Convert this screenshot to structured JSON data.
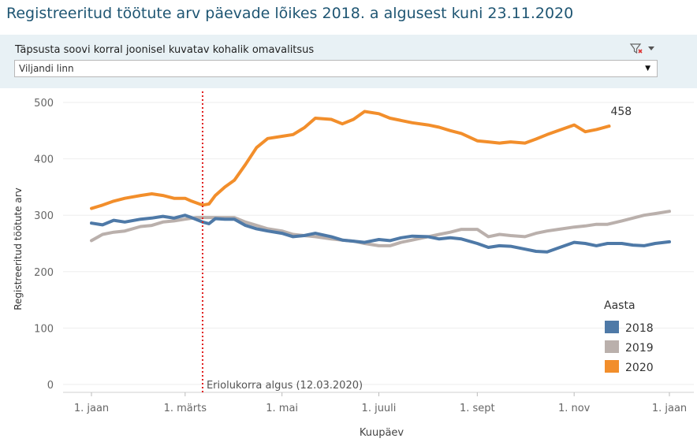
{
  "title": "Registreeritud töötute arv päevade lõikes 2018. a algusest kuni 23.11.2020",
  "filter": {
    "label": "Täpsusta soovi korral  joonisel kuvatav kohalik omavalitsus",
    "selected": "Viljandi linn",
    "icon": "filter-clear-icon"
  },
  "chart_data": {
    "type": "line",
    "xlabel": "Kuupäev",
    "ylabel": "Registreeritud töötute arv",
    "ylim": [
      0,
      500
    ],
    "yticks": [
      0,
      100,
      200,
      300,
      400,
      500
    ],
    "xlim": [
      "01-01",
      "12-31"
    ],
    "xticks": [
      {
        "date": "01-01",
        "label": "1. jaan"
      },
      {
        "date": "03-01",
        "label": "1. märts"
      },
      {
        "date": "05-01",
        "label": "1. mai"
      },
      {
        "date": "07-01",
        "label": "1. juuli"
      },
      {
        "date": "09-01",
        "label": "1. sept"
      },
      {
        "date": "11-01",
        "label": "1. nov"
      },
      {
        "date": "12-31",
        "label": "1. jaan"
      }
    ],
    "grid": true,
    "legend": {
      "title": "Aasta",
      "placement": "right",
      "entries": [
        {
          "label": "2018",
          "color": "#4e79a7"
        },
        {
          "label": "2019",
          "color": "#bab0ac"
        },
        {
          "label": "2020",
          "color": "#f28e2b"
        }
      ]
    },
    "reference_line": {
      "date": "03-12",
      "label": "Eriolukorra algus (12.03.2020)",
      "color": "#e01e1e"
    },
    "end_label": {
      "series": "2020",
      "date": "11-23",
      "value": 458,
      "text": "458"
    },
    "series": [
      {
        "name": "2018",
        "color": "#4e79a7",
        "points": [
          [
            "01-01",
            286
          ],
          [
            "01-08",
            283
          ],
          [
            "01-15",
            291
          ],
          [
            "01-22",
            288
          ],
          [
            "02-01",
            293
          ],
          [
            "02-08",
            295
          ],
          [
            "02-15",
            298
          ],
          [
            "02-22",
            295
          ],
          [
            "03-01",
            300
          ],
          [
            "03-05",
            296
          ],
          [
            "03-12",
            288
          ],
          [
            "03-16",
            285
          ],
          [
            "03-20",
            294
          ],
          [
            "03-26",
            293
          ],
          [
            "04-01",
            293
          ],
          [
            "04-08",
            282
          ],
          [
            "04-15",
            276
          ],
          [
            "04-22",
            272
          ],
          [
            "05-01",
            268
          ],
          [
            "05-08",
            262
          ],
          [
            "05-15",
            264
          ],
          [
            "05-22",
            268
          ],
          [
            "06-01",
            262
          ],
          [
            "06-08",
            256
          ],
          [
            "06-15",
            254
          ],
          [
            "06-22",
            252
          ],
          [
            "07-01",
            257
          ],
          [
            "07-08",
            255
          ],
          [
            "07-15",
            260
          ],
          [
            "07-22",
            263
          ],
          [
            "08-01",
            262
          ],
          [
            "08-08",
            258
          ],
          [
            "08-15",
            260
          ],
          [
            "08-22",
            258
          ],
          [
            "09-01",
            250
          ],
          [
            "09-08",
            243
          ],
          [
            "09-15",
            246
          ],
          [
            "09-22",
            245
          ],
          [
            "10-01",
            240
          ],
          [
            "10-08",
            236
          ],
          [
            "10-15",
            235
          ],
          [
            "10-22",
            242
          ],
          [
            "11-01",
            252
          ],
          [
            "11-08",
            250
          ],
          [
            "11-15",
            246
          ],
          [
            "11-22",
            250
          ],
          [
            "12-01",
            250
          ],
          [
            "12-08",
            247
          ],
          [
            "12-15",
            246
          ],
          [
            "12-22",
            250
          ],
          [
            "12-31",
            253
          ]
        ]
      },
      {
        "name": "2019",
        "color": "#bab0ac",
        "points": [
          [
            "01-01",
            255
          ],
          [
            "01-08",
            266
          ],
          [
            "01-15",
            270
          ],
          [
            "01-22",
            272
          ],
          [
            "02-01",
            280
          ],
          [
            "02-08",
            282
          ],
          [
            "02-15",
            288
          ],
          [
            "02-22",
            290
          ],
          [
            "03-01",
            293
          ],
          [
            "03-08",
            296
          ],
          [
            "03-15",
            296
          ],
          [
            "03-22",
            296
          ],
          [
            "04-01",
            296
          ],
          [
            "04-08",
            288
          ],
          [
            "04-15",
            282
          ],
          [
            "04-22",
            276
          ],
          [
            "05-01",
            272
          ],
          [
            "05-08",
            266
          ],
          [
            "05-15",
            264
          ],
          [
            "05-22",
            262
          ],
          [
            "06-01",
            258
          ],
          [
            "06-08",
            256
          ],
          [
            "06-15",
            254
          ],
          [
            "06-22",
            250
          ],
          [
            "07-01",
            246
          ],
          [
            "07-08",
            246
          ],
          [
            "07-15",
            252
          ],
          [
            "07-22",
            256
          ],
          [
            "08-01",
            262
          ],
          [
            "08-08",
            266
          ],
          [
            "08-15",
            270
          ],
          [
            "08-22",
            275
          ],
          [
            "09-01",
            275
          ],
          [
            "09-08",
            262
          ],
          [
            "09-15",
            266
          ],
          [
            "09-22",
            264
          ],
          [
            "10-01",
            262
          ],
          [
            "10-08",
            268
          ],
          [
            "10-15",
            272
          ],
          [
            "10-22",
            275
          ],
          [
            "11-01",
            279
          ],
          [
            "11-08",
            281
          ],
          [
            "11-15",
            284
          ],
          [
            "11-22",
            284
          ],
          [
            "12-01",
            290
          ],
          [
            "12-08",
            295
          ],
          [
            "12-15",
            300
          ],
          [
            "12-22",
            303
          ],
          [
            "12-31",
            307
          ]
        ]
      },
      {
        "name": "2020",
        "color": "#f28e2b",
        "points": [
          [
            "01-01",
            312
          ],
          [
            "01-08",
            318
          ],
          [
            "01-15",
            325
          ],
          [
            "01-22",
            330
          ],
          [
            "02-01",
            335
          ],
          [
            "02-08",
            338
          ],
          [
            "02-15",
            335
          ],
          [
            "02-22",
            330
          ],
          [
            "03-01",
            330
          ],
          [
            "03-05",
            325
          ],
          [
            "03-12",
            318
          ],
          [
            "03-16",
            320
          ],
          [
            "03-20",
            335
          ],
          [
            "03-26",
            350
          ],
          [
            "04-01",
            362
          ],
          [
            "04-08",
            390
          ],
          [
            "04-15",
            420
          ],
          [
            "04-22",
            436
          ],
          [
            "05-01",
            440
          ],
          [
            "05-08",
            443
          ],
          [
            "05-15",
            455
          ],
          [
            "05-22",
            472
          ],
          [
            "06-01",
            470
          ],
          [
            "06-08",
            462
          ],
          [
            "06-15",
            470
          ],
          [
            "06-22",
            484
          ],
          [
            "07-01",
            480
          ],
          [
            "07-08",
            472
          ],
          [
            "07-15",
            468
          ],
          [
            "07-22",
            464
          ],
          [
            "08-01",
            460
          ],
          [
            "08-08",
            456
          ],
          [
            "08-15",
            450
          ],
          [
            "08-22",
            445
          ],
          [
            "09-01",
            432
          ],
          [
            "09-08",
            430
          ],
          [
            "09-15",
            428
          ],
          [
            "09-22",
            430
          ],
          [
            "10-01",
            428
          ],
          [
            "10-08",
            435
          ],
          [
            "10-15",
            443
          ],
          [
            "10-22",
            450
          ],
          [
            "11-01",
            460
          ],
          [
            "11-08",
            448
          ],
          [
            "11-15",
            452
          ],
          [
            "11-23",
            458
          ]
        ]
      }
    ]
  }
}
